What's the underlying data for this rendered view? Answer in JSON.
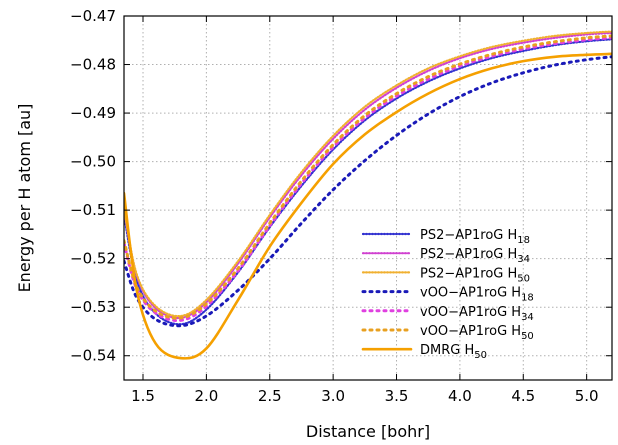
{
  "chart_data": {
    "type": "line",
    "xlabel": "Distance [bohr]",
    "ylabel": "Energy per H atom [au]",
    "xlim": [
      1.35,
      5.2
    ],
    "ylim": [
      -0.545,
      -0.47
    ],
    "xticks": [
      1.5,
      2.0,
      2.5,
      3.0,
      3.5,
      4.0,
      4.5,
      5.0
    ],
    "xtick_labels": [
      "1.5",
      "2.0",
      "2.5",
      "3.0",
      "3.5",
      "4.0",
      "4.5",
      "5.0"
    ],
    "yticks": [
      -0.54,
      -0.53,
      -0.52,
      -0.51,
      -0.5,
      -0.49,
      -0.48,
      -0.47
    ],
    "ytick_labels": [
      "−0.54",
      "−0.53",
      "−0.52",
      "−0.51",
      "−0.50",
      "−0.49",
      "−0.48",
      "−0.47"
    ],
    "grid": true,
    "legend_position": "bottom-right",
    "series": [
      {
        "name": "PS2−AP1roG H",
        "subscript": "18",
        "color": "#3030d0",
        "style": "fine-dotted",
        "x": [
          1.35,
          1.45,
          1.6,
          1.8,
          2.0,
          2.25,
          2.5,
          2.75,
          3.0,
          3.25,
          3.5,
          3.75,
          4.0,
          4.25,
          4.5,
          4.75,
          5.0,
          5.2
        ],
        "y": [
          -0.511,
          -0.5245,
          -0.5313,
          -0.5335,
          -0.5305,
          -0.5228,
          -0.5135,
          -0.505,
          -0.4975,
          -0.4915,
          -0.487,
          -0.4835,
          -0.4808,
          -0.4787,
          -0.4772,
          -0.476,
          -0.4752,
          -0.4748
        ]
      },
      {
        "name": "PS2−AP1roG H",
        "subscript": "34",
        "color": "#d040d0",
        "style": "fine-dotted",
        "x": [
          1.35,
          1.45,
          1.6,
          1.8,
          2.0,
          2.25,
          2.5,
          2.75,
          3.0,
          3.25,
          3.5,
          3.75,
          4.0,
          4.25,
          4.5,
          4.75,
          5.0,
          5.2
        ],
        "y": [
          -0.51,
          -0.5235,
          -0.5302,
          -0.5322,
          -0.529,
          -0.521,
          -0.5115,
          -0.5028,
          -0.4953,
          -0.4893,
          -0.4848,
          -0.4813,
          -0.4787,
          -0.4768,
          -0.4755,
          -0.4745,
          -0.4738,
          -0.4735
        ]
      },
      {
        "name": "PS2−AP1roG H",
        "subscript": "50",
        "color": "#f0b030",
        "style": "fine-dotted",
        "x": [
          1.35,
          1.45,
          1.6,
          1.8,
          2.0,
          2.25,
          2.5,
          2.75,
          3.0,
          3.25,
          3.5,
          3.75,
          4.0,
          4.25,
          4.5,
          4.75,
          5.0,
          5.2
        ],
        "y": [
          -0.5098,
          -0.5232,
          -0.5298,
          -0.5318,
          -0.5285,
          -0.5205,
          -0.511,
          -0.5022,
          -0.4947,
          -0.4887,
          -0.4843,
          -0.4808,
          -0.4783,
          -0.4764,
          -0.4751,
          -0.4741,
          -0.4735,
          -0.4732
        ]
      },
      {
        "name": "vOO−AP1roG H",
        "subscript": "18",
        "color": "#1a1ab8",
        "style": "coarse-dotted",
        "x": [
          1.35,
          1.45,
          1.6,
          1.8,
          2.0,
          2.25,
          2.5,
          2.75,
          3.0,
          3.25,
          3.5,
          3.75,
          4.0,
          4.25,
          4.5,
          4.75,
          5.0,
          5.2
        ],
        "y": [
          -0.5205,
          -0.528,
          -0.5325,
          -0.5338,
          -0.5318,
          -0.5265,
          -0.52,
          -0.5127,
          -0.5058,
          -0.4998,
          -0.4946,
          -0.4902,
          -0.4866,
          -0.4838,
          -0.4817,
          -0.4801,
          -0.479,
          -0.4784
        ]
      },
      {
        "name": "vOO−AP1roG H",
        "subscript": "34",
        "color": "#e040e0",
        "style": "coarse-dotted",
        "x": [
          1.35,
          1.45,
          1.6,
          1.8,
          2.0,
          2.25,
          2.5,
          2.75,
          3.0,
          3.25,
          3.5,
          3.75,
          4.0,
          4.25,
          4.5,
          4.75,
          5.0,
          5.2
        ],
        "y": [
          -0.5168,
          -0.5262,
          -0.5312,
          -0.5327,
          -0.5298,
          -0.5225,
          -0.5132,
          -0.5045,
          -0.497,
          -0.491,
          -0.4865,
          -0.483,
          -0.4803,
          -0.4783,
          -0.4768,
          -0.4757,
          -0.4749,
          -0.4745
        ]
      },
      {
        "name": "vOO−AP1roG H",
        "subscript": "50",
        "color": "#e8a020",
        "style": "coarse-dotted",
        "x": [
          1.35,
          1.45,
          1.6,
          1.8,
          2.0,
          2.25,
          2.5,
          2.75,
          3.0,
          3.25,
          3.5,
          3.75,
          4.0,
          4.25,
          4.5,
          4.75,
          5.0,
          5.2
        ],
        "y": [
          -0.5163,
          -0.5258,
          -0.5308,
          -0.5322,
          -0.5293,
          -0.522,
          -0.5127,
          -0.504,
          -0.4965,
          -0.4905,
          -0.486,
          -0.4825,
          -0.4799,
          -0.4779,
          -0.4764,
          -0.4753,
          -0.4745,
          -0.4741
        ]
      },
      {
        "name": "DMRG H",
        "subscript": "50",
        "color": "#f5a000",
        "style": "solid",
        "x": [
          1.35,
          1.45,
          1.6,
          1.8,
          2.0,
          2.25,
          2.5,
          2.75,
          3.0,
          3.25,
          3.5,
          3.75,
          4.0,
          4.25,
          4.5,
          4.75,
          5.0,
          5.2
        ],
        "y": [
          -0.5065,
          -0.5265,
          -0.5375,
          -0.5405,
          -0.5385,
          -0.5285,
          -0.5175,
          -0.5085,
          -0.5005,
          -0.4944,
          -0.4898,
          -0.486,
          -0.483,
          -0.4808,
          -0.4793,
          -0.4784,
          -0.478,
          -0.4778
        ]
      }
    ]
  }
}
